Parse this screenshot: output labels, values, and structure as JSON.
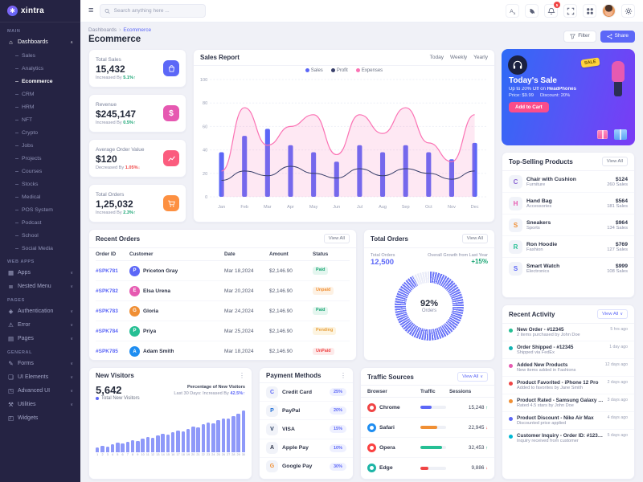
{
  "brand": {
    "name": "xintra"
  },
  "topbar": {
    "search_placeholder": "Search anything here ...",
    "notification_count": "5"
  },
  "breadcrumb": {
    "parent": "Dashboards",
    "current": "Ecommerce"
  },
  "page": {
    "title": "Ecommerce",
    "filter_label": "Filter",
    "share_label": "Share"
  },
  "sidebar": {
    "sections": [
      {
        "label": "MAIN",
        "items": [
          {
            "label": "Dashboards",
            "icon": "home-icon",
            "active": true,
            "expanded": true,
            "children": [
              "Sales",
              "Analytics",
              "Ecommerce",
              "CRM",
              "HRM",
              "NFT",
              "Crypto",
              "Jobs",
              "Projects",
              "Courses",
              "Stocks",
              "Medical",
              "POS System",
              "Podcast",
              "School",
              "Social Media"
            ],
            "active_child": "Ecommerce"
          }
        ]
      },
      {
        "label": "WEB APPS",
        "items": [
          {
            "label": "Apps",
            "icon": "apps-icon",
            "expandable": true
          },
          {
            "label": "Nested Menu",
            "icon": "nested-menu-icon",
            "expandable": true
          }
        ]
      },
      {
        "label": "PAGES",
        "items": [
          {
            "label": "Authentication",
            "icon": "lock-icon",
            "expandable": true
          },
          {
            "label": "Error",
            "icon": "error-icon",
            "expandable": true
          },
          {
            "label": "Pages",
            "icon": "pages-icon",
            "expandable": true
          }
        ]
      },
      {
        "label": "GENERAL",
        "items": [
          {
            "label": "Forms",
            "icon": "forms-icon",
            "expandable": true
          },
          {
            "label": "UI Elements",
            "icon": "ui-elements-icon",
            "expandable": true
          },
          {
            "label": "Advanced UI",
            "icon": "advanced-ui-icon",
            "expandable": true
          },
          {
            "label": "Utilities",
            "icon": "utilities-icon",
            "expandable": true
          },
          {
            "label": "Widgets",
            "icon": "widgets-icon",
            "expandable": false
          }
        ]
      }
    ]
  },
  "stats": [
    {
      "label": "Total Sales",
      "value": "15,432",
      "change_prefix": "Increased By",
      "change": "5.1%",
      "direction": "up",
      "accent": "#5c67f7",
      "icon": "shopping-bag-icon"
    },
    {
      "label": "Revenue",
      "value": "$245,147",
      "change_prefix": "Increased By",
      "change": "0.5%",
      "direction": "up",
      "accent": "#e658b1",
      "icon": "dollar-icon"
    },
    {
      "label": "Average Order Value",
      "value": "$120",
      "change_prefix": "Decreased By",
      "change": "1.05%",
      "direction": "down",
      "accent": "#fb5c7e",
      "icon": "chart-line-icon"
    },
    {
      "label": "Total Orders",
      "value": "1,25,032",
      "change_prefix": "Increased By",
      "change": "2.3%",
      "direction": "up",
      "accent": "#fd9041",
      "icon": "cart-icon"
    }
  ],
  "sales_report": {
    "title": "Sales Report",
    "tabs": [
      "Today",
      "Weekly",
      "Yearly"
    ],
    "legend": [
      {
        "name": "Sales",
        "color": "#5c67f7"
      },
      {
        "name": "Profit",
        "color": "#39406b"
      },
      {
        "name": "Expenses",
        "color": "#fb73b4"
      }
    ]
  },
  "chart_data": [
    {
      "type": "bar",
      "title": "Sales Report",
      "x": [
        "Jan",
        "Feb",
        "Mar",
        "Apr",
        "May",
        "Jun",
        "Jul",
        "Aug",
        "Sep",
        "Oct",
        "Nov",
        "Dec"
      ],
      "ylim": [
        0,
        100
      ],
      "yticks": [
        0,
        20,
        40,
        60,
        80,
        100
      ],
      "legend_position": "top",
      "grid": true,
      "series": [
        {
          "name": "Sales",
          "type": "bar",
          "color": "#5c67f7",
          "values": [
            38,
            52,
            58,
            44,
            38,
            30,
            44,
            38,
            44,
            38,
            32,
            46
          ]
        },
        {
          "name": "Profit",
          "type": "line",
          "color": "#39406b",
          "values": [
            14,
            22,
            18,
            26,
            20,
            16,
            24,
            18,
            24,
            20,
            15,
            22
          ]
        },
        {
          "name": "Expenses",
          "type": "area",
          "color": "#fb73b4",
          "values": [
            22,
            76,
            44,
            60,
            70,
            36,
            70,
            54,
            76,
            46,
            30,
            70
          ]
        }
      ]
    },
    {
      "type": "bar",
      "title": "New Visitors - Last 30 Days",
      "x": [
        "1",
        "2",
        "3",
        "4",
        "5",
        "6",
        "7",
        "8",
        "9",
        "10",
        "11",
        "12",
        "13",
        "14",
        "15",
        "16",
        "17",
        "18",
        "19",
        "20",
        "21",
        "22",
        "23",
        "24",
        "25",
        "26",
        "27",
        "28",
        "29",
        "30"
      ],
      "values": [
        6,
        8,
        7,
        10,
        12,
        11,
        14,
        16,
        15,
        18,
        20,
        19,
        22,
        24,
        23,
        26,
        28,
        27,
        30,
        33,
        32,
        36,
        38,
        37,
        41,
        44,
        43,
        47,
        50,
        54
      ],
      "ylim": [
        0,
        60
      ],
      "color": "#8e99f9"
    },
    {
      "type": "gauge",
      "title": "Total Orders",
      "value": 92,
      "unit": "%",
      "label": "Orders",
      "color": "#6d77f8"
    }
  ],
  "promo": {
    "badge": "SALE",
    "title": "Today's Sale",
    "subtitle_prefix": "Up to 20% Off on ",
    "subtitle_highlight": "HeadPhones",
    "price_label": "Price: $9.99",
    "discount_label": "Discount: 20%",
    "cta_label": "Add to Cart"
  },
  "top_selling": {
    "title": "Top-Selling Products",
    "view_all_label": "View All",
    "products": [
      {
        "name": "Chair with Cushion",
        "category": "Furniture",
        "price": "$124",
        "sales": "260 Sales",
        "thumb_color": "#8a63d2"
      },
      {
        "name": "Hand Bag",
        "category": "Accessories",
        "price": "$564",
        "sales": "181 Sales",
        "thumb_color": "#e65ab1"
      },
      {
        "name": "Sneakers",
        "category": "Sports",
        "price": "$964",
        "sales": "134 Sales",
        "thumb_color": "#f08f34"
      },
      {
        "name": "Ron Hoodie",
        "category": "Fashion",
        "price": "$769",
        "sales": "127 Sales",
        "thumb_color": "#26bf94"
      },
      {
        "name": "Smart Watch",
        "category": "Electronics",
        "price": "$999",
        "sales": "108 Sales",
        "thumb_color": "#5c67f7"
      }
    ]
  },
  "recent_orders": {
    "title": "Recent Orders",
    "view_all_label": "View All",
    "columns": [
      "Order ID",
      "Customer",
      "Date",
      "Amount",
      "Status"
    ],
    "avatar_colors": [
      "#5c67f7",
      "#e65ab1",
      "#f08f34",
      "#26bf94",
      "#1f8ef1"
    ],
    "status_styles": {
      "Paid": {
        "color": "#18a573",
        "bg": "#e4f6ef"
      },
      "Unpaid": {
        "color": "#f08f34",
        "bg": "#fdf1e3"
      },
      "Pending": {
        "color": "#e7a03c",
        "bg": "#fdf4e0"
      },
      "UnPaid": {
        "color": "#f04545",
        "bg": "#fdeaea"
      }
    },
    "rows": [
      {
        "id": "#SPK781",
        "customer": "Priceton Gray",
        "date": "Mar 18,2024",
        "amount": "$2,146.90",
        "status": "Paid"
      },
      {
        "id": "#SPK782",
        "customer": "Elsa Urena",
        "date": "Mar 20,2024",
        "amount": "$2,146.90",
        "status": "Unpaid"
      },
      {
        "id": "#SPK783",
        "customer": "Gloria",
        "date": "Mar 24,2024",
        "amount": "$2,146.90",
        "status": "Paid"
      },
      {
        "id": "#SPK784",
        "customer": "Priya",
        "date": "Mar 25,2024",
        "amount": "$2,146.90",
        "status": "Pending"
      },
      {
        "id": "#SPK785",
        "customer": "Adam Smith",
        "date": "Mar 18,2024",
        "amount": "$2,146.90",
        "status": "UnPaid"
      }
    ]
  },
  "total_orders_card": {
    "title": "Total Orders",
    "view_all_label": "View All",
    "metric_label": "Total Orders",
    "metric_value": "12,500",
    "growth_label": "Overall Growth from Last Year",
    "growth_value": "+15%",
    "gauge_value": "92%",
    "gauge_label": "Orders"
  },
  "recent_activity": {
    "title": "Recent Activity",
    "view_all_label": "View All",
    "items": [
      {
        "title": "New Order - #12345",
        "desc": "2 items purchased by John Doe",
        "time": "5 hrs ago",
        "color": "#26bf94"
      },
      {
        "title": "Order Shipped - #12345",
        "desc": "Shipped via FedEx",
        "time": "1 day ago",
        "color": "#12b3b3"
      },
      {
        "title": "Added New Products",
        "desc": "New items added in Fashions",
        "time": "12 days ago",
        "color": "#e65ab1"
      },
      {
        "title": "Product Favorited - iPhone 12 Pro",
        "desc": "Added to favorites by Jane Smith",
        "time": "2 days ago",
        "color": "#f04545"
      },
      {
        "title": "Product Rated - Samsung Galaxy S21",
        "desc": "Rated 4.5 stars by John Doe",
        "time": "3 days ago",
        "color": "#f08f34"
      },
      {
        "title": "Product Discount - Nike Air Max",
        "desc": "Discounted price applied",
        "time": "4 days ago",
        "color": "#5c67f7"
      },
      {
        "title": "Customer Inquiry - Order ID: #12346",
        "desc": "Inquiry received from customer",
        "time": "5 days ago",
        "color": "#00b8d4"
      }
    ]
  },
  "new_visitors": {
    "title": "New Visitors",
    "value": "5,642",
    "value_label": "Total New Visitors",
    "note_line1": "Percentage of New Visitors",
    "note_line2_prefix": "Last 30 Days: Increased By ",
    "note_value": "42.5%"
  },
  "payment_methods": {
    "title": "Payment Methods",
    "items": [
      {
        "name": "Credit Card",
        "share": "25%",
        "icon": "credit-card-icon",
        "color": "#5c67f7"
      },
      {
        "name": "PayPal",
        "share": "20%",
        "icon": "paypal-icon",
        "color": "#1f6fd6"
      },
      {
        "name": "VISA",
        "share": "15%",
        "icon": "visa-icon",
        "color": "#23395d"
      },
      {
        "name": "Apple Pay",
        "share": "10%",
        "icon": "apple-pay-icon",
        "color": "#30364a"
      },
      {
        "name": "Google Pay",
        "share": "30%",
        "icon": "google-pay-icon",
        "color": "#f08f34"
      }
    ]
  },
  "traffic_sources": {
    "title": "Traffic Sources",
    "view_all_label": "View All",
    "columns": [
      "Browser",
      "Traffic",
      "Sessions"
    ],
    "rows": [
      {
        "browser": "Chrome",
        "sessions": "15,248",
        "traffic_pct": 45,
        "bar_color": "#5c67f7",
        "trend": "up",
        "icon_color": "#f04545"
      },
      {
        "browser": "Safari",
        "sessions": "22,945",
        "traffic_pct": 65,
        "bar_color": "#f08f34",
        "trend": "down",
        "icon_color": "#1f8ef1"
      },
      {
        "browser": "Opera",
        "sessions": "32,453",
        "traffic_pct": 85,
        "bar_color": "#26bf94",
        "trend": "up",
        "icon_color": "#fb4242"
      },
      {
        "browser": "Edge",
        "sessions": "9,886",
        "traffic_pct": 30,
        "bar_color": "#f04545",
        "trend": "down",
        "icon_color": "#1db5a6"
      }
    ]
  }
}
